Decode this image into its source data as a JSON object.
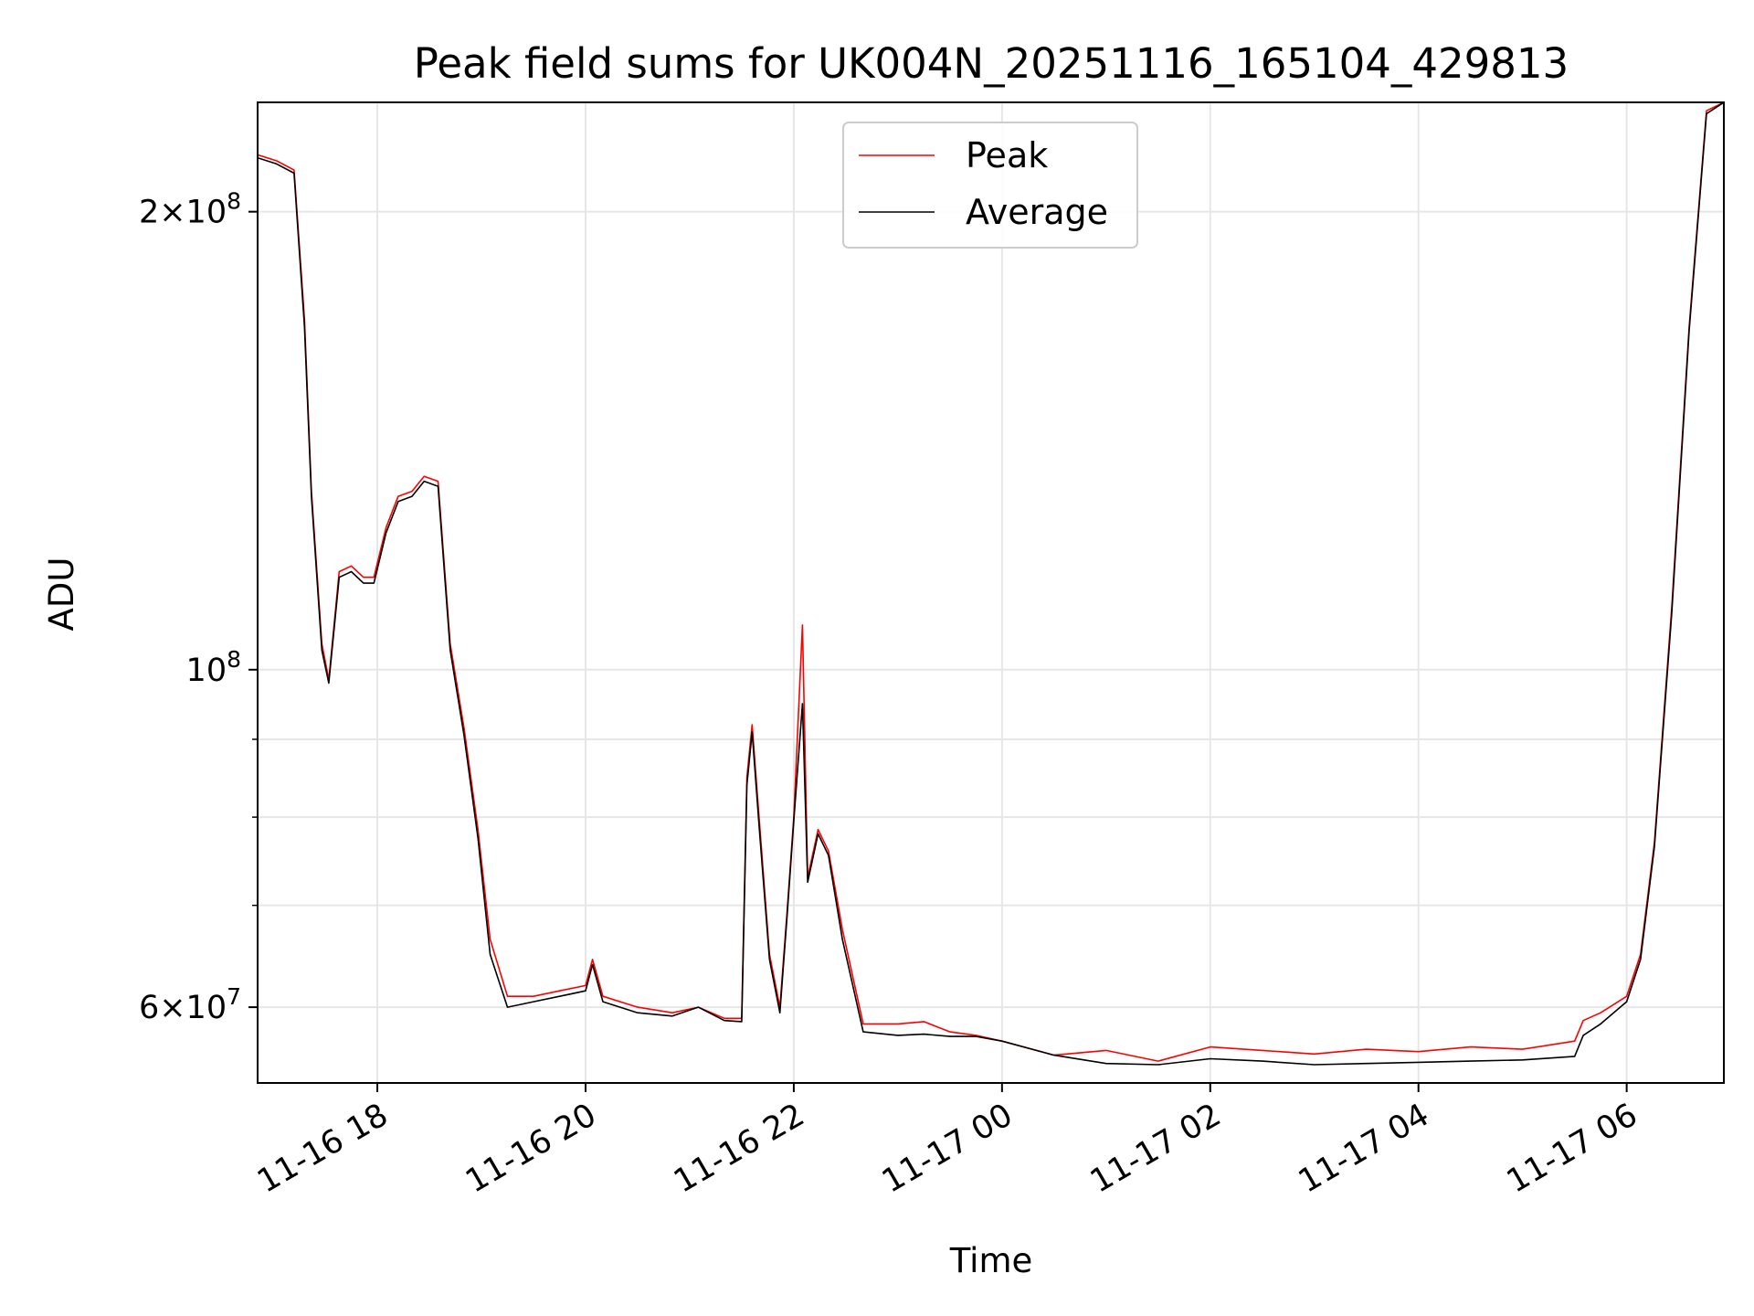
{
  "chart_data": {
    "type": "line",
    "title": "Peak field sums for UK004N_20251116_165104_429813",
    "xlabel": "Time",
    "ylabel": "ADU",
    "x_range": [
      "2025-11-16 16:51",
      "2025-11-17 06:56"
    ],
    "ylim": [
      53500000,
      236000000
    ],
    "y_scale": "log",
    "grid": true,
    "legend_position": "top-center",
    "x_ticks": [
      {
        "t": "2025-11-16 18:00",
        "label": "11-16 18"
      },
      {
        "t": "2025-11-16 20:00",
        "label": "11-16 20"
      },
      {
        "t": "2025-11-16 22:00",
        "label": "11-16 22"
      },
      {
        "t": "2025-11-17 00:00",
        "label": "11-17 00"
      },
      {
        "t": "2025-11-17 02:00",
        "label": "11-17 02"
      },
      {
        "t": "2025-11-17 04:00",
        "label": "11-17 04"
      },
      {
        "t": "2025-11-17 06:00",
        "label": "11-17 06"
      }
    ],
    "y_ticks": [
      {
        "v": 60000000,
        "mantissa": "6",
        "exp": "7"
      },
      {
        "v": 100000000,
        "mantissa": "",
        "exp": "8"
      },
      {
        "v": 200000000,
        "mantissa": "2",
        "exp": "8"
      }
    ],
    "y_minor_ticks": [
      70000000,
      80000000,
      90000000
    ],
    "series": [
      {
        "name": "Peak",
        "color": "#ff0000",
        "points": [
          [
            "2025-11-16 16:51",
            218000000
          ],
          [
            "2025-11-16 17:02",
            216000000
          ],
          [
            "2025-11-16 17:12",
            213000000
          ],
          [
            "2025-11-16 17:18",
            170000000
          ],
          [
            "2025-11-16 17:22",
            131000000
          ],
          [
            "2025-11-16 17:28",
            104000000
          ],
          [
            "2025-11-16 17:32",
            98500000
          ],
          [
            "2025-11-16 17:38",
            116000000
          ],
          [
            "2025-11-16 17:45",
            117000000
          ],
          [
            "2025-11-16 17:52",
            115000000
          ],
          [
            "2025-11-16 17:58",
            115000000
          ],
          [
            "2025-11-16 18:05",
            124000000
          ],
          [
            "2025-11-16 18:12",
            130000000
          ],
          [
            "2025-11-16 18:20",
            131000000
          ],
          [
            "2025-11-16 18:27",
            134000000
          ],
          [
            "2025-11-16 18:35",
            133000000
          ],
          [
            "2025-11-16 18:42",
            104000000
          ],
          [
            "2025-11-16 18:50",
            91500000
          ],
          [
            "2025-11-16 18:58",
            78500000
          ],
          [
            "2025-11-16 19:05",
            66500000
          ],
          [
            "2025-11-16 19:15",
            61000000
          ],
          [
            "2025-11-16 19:30",
            61000000
          ],
          [
            "2025-11-16 19:45",
            61500000
          ],
          [
            "2025-11-16 20:00",
            62000000
          ],
          [
            "2025-11-16 20:04",
            64500000
          ],
          [
            "2025-11-16 20:10",
            61000000
          ],
          [
            "2025-11-16 20:30",
            60000000
          ],
          [
            "2025-11-16 20:50",
            59500000
          ],
          [
            "2025-11-16 21:05",
            60000000
          ],
          [
            "2025-11-16 21:20",
            59000000
          ],
          [
            "2025-11-16 21:30",
            59000000
          ],
          [
            "2025-11-16 21:33",
            85000000
          ],
          [
            "2025-11-16 21:36",
            92000000
          ],
          [
            "2025-11-16 21:40",
            80000000
          ],
          [
            "2025-11-16 21:46",
            65000000
          ],
          [
            "2025-11-16 21:52",
            60000000
          ],
          [
            "2025-11-16 21:56",
            69000000
          ],
          [
            "2025-11-16 22:00",
            80000000
          ],
          [
            "2025-11-16 22:05",
            107000000
          ],
          [
            "2025-11-16 22:08",
            73000000
          ],
          [
            "2025-11-16 22:14",
            78500000
          ],
          [
            "2025-11-16 22:20",
            76000000
          ],
          [
            "2025-11-16 22:28",
            67500000
          ],
          [
            "2025-11-16 22:40",
            58500000
          ],
          [
            "2025-11-16 23:00",
            58500000
          ],
          [
            "2025-11-16 23:15",
            58700000
          ],
          [
            "2025-11-16 23:30",
            57800000
          ],
          [
            "2025-11-16 23:45",
            57500000
          ],
          [
            "2025-11-17 00:00",
            57000000
          ],
          [
            "2025-11-17 00:30",
            55800000
          ],
          [
            "2025-11-17 01:00",
            56200000
          ],
          [
            "2025-11-17 01:30",
            55300000
          ],
          [
            "2025-11-17 02:00",
            56500000
          ],
          [
            "2025-11-17 02:30",
            56200000
          ],
          [
            "2025-11-17 03:00",
            55900000
          ],
          [
            "2025-11-17 03:30",
            56300000
          ],
          [
            "2025-11-17 04:00",
            56100000
          ],
          [
            "2025-11-17 04:30",
            56500000
          ],
          [
            "2025-11-17 05:00",
            56300000
          ],
          [
            "2025-11-17 05:30",
            57000000
          ],
          [
            "2025-11-17 05:35",
            58800000
          ],
          [
            "2025-11-17 05:45",
            59500000
          ],
          [
            "2025-11-17 06:00",
            61000000
          ],
          [
            "2025-11-17 06:08",
            65000000
          ],
          [
            "2025-11-17 06:16",
            77000000
          ],
          [
            "2025-11-17 06:26",
            110000000
          ],
          [
            "2025-11-17 06:36",
            168000000
          ],
          [
            "2025-11-17 06:46",
            233000000
          ],
          [
            "2025-11-17 06:56",
            236000000
          ]
        ]
      },
      {
        "name": "Average",
        "color": "#000000",
        "points": [
          [
            "2025-11-16 16:51",
            217000000
          ],
          [
            "2025-11-16 17:02",
            215000000
          ],
          [
            "2025-11-16 17:12",
            212000000
          ],
          [
            "2025-11-16 17:18",
            168000000
          ],
          [
            "2025-11-16 17:22",
            130000000
          ],
          [
            "2025-11-16 17:28",
            103000000
          ],
          [
            "2025-11-16 17:32",
            98000000
          ],
          [
            "2025-11-16 17:38",
            115000000
          ],
          [
            "2025-11-16 17:45",
            116000000
          ],
          [
            "2025-11-16 17:52",
            114000000
          ],
          [
            "2025-11-16 17:58",
            114000000
          ],
          [
            "2025-11-16 18:05",
            123000000
          ],
          [
            "2025-11-16 18:12",
            129000000
          ],
          [
            "2025-11-16 18:20",
            130000000
          ],
          [
            "2025-11-16 18:27",
            133000000
          ],
          [
            "2025-11-16 18:35",
            132000000
          ],
          [
            "2025-11-16 18:42",
            103000000
          ],
          [
            "2025-11-16 18:50",
            90500000
          ],
          [
            "2025-11-16 18:58",
            77500000
          ],
          [
            "2025-11-16 19:05",
            65000000
          ],
          [
            "2025-11-16 19:15",
            60000000
          ],
          [
            "2025-11-16 19:30",
            60500000
          ],
          [
            "2025-11-16 19:45",
            61000000
          ],
          [
            "2025-11-16 20:00",
            61500000
          ],
          [
            "2025-11-16 20:04",
            64000000
          ],
          [
            "2025-11-16 20:10",
            60500000
          ],
          [
            "2025-11-16 20:30",
            59500000
          ],
          [
            "2025-11-16 20:50",
            59200000
          ],
          [
            "2025-11-16 21:05",
            60000000
          ],
          [
            "2025-11-16 21:20",
            58800000
          ],
          [
            "2025-11-16 21:30",
            58700000
          ],
          [
            "2025-11-16 21:33",
            84000000
          ],
          [
            "2025-11-16 21:36",
            91000000
          ],
          [
            "2025-11-16 21:40",
            79000000
          ],
          [
            "2025-11-16 21:46",
            64500000
          ],
          [
            "2025-11-16 21:52",
            59500000
          ],
          [
            "2025-11-16 21:56",
            68500000
          ],
          [
            "2025-11-16 22:00",
            79500000
          ],
          [
            "2025-11-16 22:05",
            95000000
          ],
          [
            "2025-11-16 22:08",
            72500000
          ],
          [
            "2025-11-16 22:14",
            78000000
          ],
          [
            "2025-11-16 22:20",
            75500000
          ],
          [
            "2025-11-16 22:28",
            66500000
          ],
          [
            "2025-11-16 22:40",
            57800000
          ],
          [
            "2025-11-16 23:00",
            57500000
          ],
          [
            "2025-11-16 23:15",
            57600000
          ],
          [
            "2025-11-16 23:30",
            57400000
          ],
          [
            "2025-11-16 23:45",
            57400000
          ],
          [
            "2025-11-17 00:00",
            57000000
          ],
          [
            "2025-11-17 00:30",
            55800000
          ],
          [
            "2025-11-17 01:00",
            55100000
          ],
          [
            "2025-11-17 01:30",
            55000000
          ],
          [
            "2025-11-17 02:00",
            55500000
          ],
          [
            "2025-11-17 02:30",
            55300000
          ],
          [
            "2025-11-17 03:00",
            55000000
          ],
          [
            "2025-11-17 03:30",
            55100000
          ],
          [
            "2025-11-17 04:00",
            55200000
          ],
          [
            "2025-11-17 04:30",
            55300000
          ],
          [
            "2025-11-17 05:00",
            55400000
          ],
          [
            "2025-11-17 05:30",
            55700000
          ],
          [
            "2025-11-17 05:35",
            57500000
          ],
          [
            "2025-11-17 05:45",
            58500000
          ],
          [
            "2025-11-17 06:00",
            60500000
          ],
          [
            "2025-11-17 06:08",
            64500000
          ],
          [
            "2025-11-17 06:16",
            76500000
          ],
          [
            "2025-11-17 06:26",
            109000000
          ],
          [
            "2025-11-17 06:36",
            167000000
          ],
          [
            "2025-11-17 06:46",
            232000000
          ],
          [
            "2025-11-17 06:56",
            236000000
          ]
        ]
      }
    ]
  }
}
